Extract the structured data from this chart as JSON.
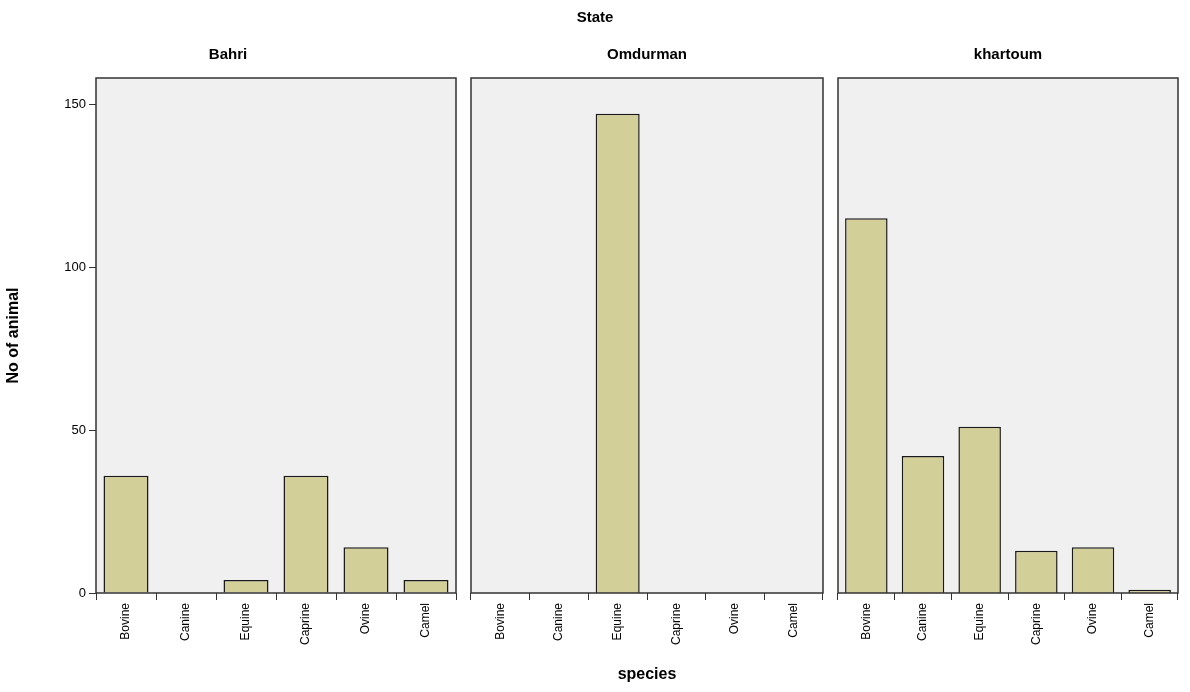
{
  "chart_data": [
    {
      "type": "bar",
      "title": "Bahri",
      "ylabel": "No of animal",
      "categories": [
        "Bovine",
        "Canine",
        "Equine",
        "Caprine",
        "Ovine",
        "Camel"
      ],
      "values": [
        36,
        0,
        4,
        36,
        14,
        4
      ],
      "color": "#d3cf98",
      "ylim": [
        0,
        158
      ],
      "yticks": [
        0,
        50,
        100,
        150
      ]
    },
    {
      "type": "bar",
      "title": "Omdurman",
      "xlabel": "species",
      "annotations": [
        "State"
      ],
      "categories": [
        "Bovine",
        "Canine",
        "Equine",
        "Caprine",
        "Ovine",
        "Camel"
      ],
      "values": [
        0,
        0,
        147,
        0,
        0,
        0
      ],
      "color": "#d3cf98",
      "ylim": [
        0,
        158
      ],
      "yticks": [
        0,
        50,
        100,
        150
      ],
      "tick_labels": "x"
    },
    {
      "type": "bar",
      "title": "khartoum",
      "categories": [
        "Bovine",
        "Canine",
        "Equine",
        "Caprine",
        "Ovine",
        "Camel"
      ],
      "values": [
        115,
        42,
        51,
        13,
        14,
        1
      ],
      "color": "#d3cf98",
      "ylim": [
        0,
        158
      ],
      "yticks": [
        0,
        50,
        100,
        150
      ],
      "tick_labels": "x"
    }
  ]
}
